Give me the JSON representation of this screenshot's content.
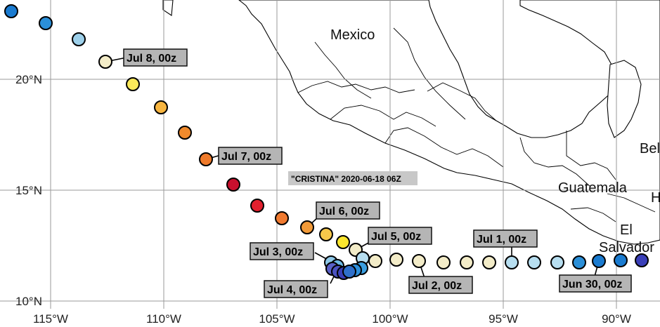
{
  "map": {
    "storm_title": "\"CRISTINA\" 2020-06-18 06Z",
    "lat_labels": [
      "20°N",
      "15°N",
      "10°N"
    ],
    "lon_labels": [
      "115°W",
      "110°W",
      "105°W",
      "100°W",
      "95°W",
      "90°W"
    ],
    "country_labels": [
      "Mexico",
      "Guatemala",
      "El",
      "Salvador",
      "Bel",
      "H"
    ],
    "track_labels": [
      "Jul 8, 00z",
      "Jul 7, 00z",
      "Jul 6, 00z",
      "Jul 5, 00z",
      "Jul 3, 00z",
      "Jul 1, 00z",
      "Jul 4, 00z",
      "Jul 2, 00z",
      "Jun 30, 00z"
    ],
    "colors": {
      "ocean": "#ffffff",
      "grid": "#9a9a9a",
      "label_box": "#b5b5b5",
      "track_scale": [
        "#3a3fb8",
        "#1a7bd0",
        "#3a9ee0",
        "#9dd0ea",
        "#f3ecc8",
        "#fbe95a",
        "#f7b540",
        "#f08a2c",
        "#e2472c",
        "#c8102e"
      ]
    }
  }
}
